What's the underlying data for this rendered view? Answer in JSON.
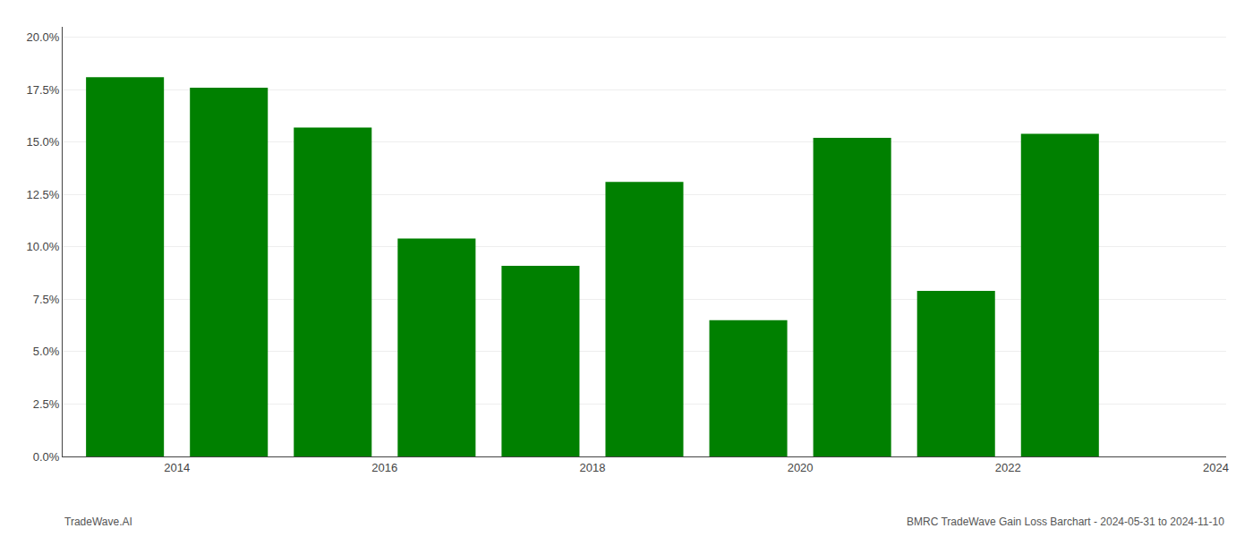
{
  "chart_data": {
    "type": "bar",
    "x": [
      2013,
      2014,
      2015,
      2016,
      2017,
      2018,
      2019,
      2020,
      2021,
      2022
    ],
    "values": [
      0.181,
      0.176,
      0.157,
      0.104,
      0.091,
      0.131,
      0.065,
      0.152,
      0.079,
      0.154
    ],
    "color": "#008000",
    "xlim": [
      2012.4,
      2023.6
    ],
    "xticks": [
      {
        "value": 2013.5,
        "label": "2014"
      },
      {
        "value": 2015.5,
        "label": "2016"
      },
      {
        "value": 2017.5,
        "label": "2018"
      },
      {
        "value": 2019.5,
        "label": "2020"
      },
      {
        "value": 2021.5,
        "label": "2022"
      },
      {
        "value": 2023.5,
        "label": "2024"
      }
    ],
    "ylim": [
      0,
      0.205
    ],
    "yticks": [
      {
        "value": 0.0,
        "label": "0.0%"
      },
      {
        "value": 0.025,
        "label": "2.5%"
      },
      {
        "value": 0.05,
        "label": "5.0%"
      },
      {
        "value": 0.075,
        "label": "7.5%"
      },
      {
        "value": 0.1,
        "label": "10.0%"
      },
      {
        "value": 0.125,
        "label": "12.5%"
      },
      {
        "value": 0.15,
        "label": "15.0%"
      },
      {
        "value": 0.175,
        "label": "17.5%"
      },
      {
        "value": 0.2,
        "label": "20.0%"
      }
    ],
    "grid": "y",
    "annotations": [
      "TradeWave.AI",
      "BMRC TradeWave Gain Loss Barchart - 2024-05-31 to 2024-11-10"
    ]
  }
}
